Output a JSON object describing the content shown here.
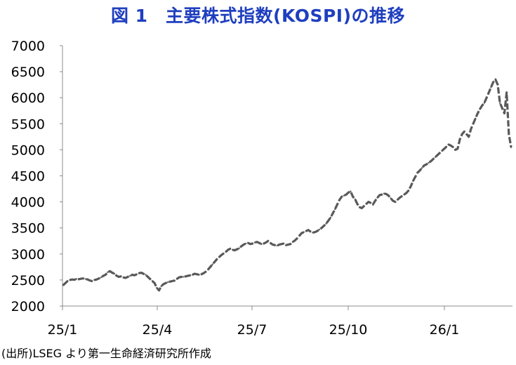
{
  "chart_title": "図 1　主要株式指数(KOSPI)の推移",
  "source": "(出所)LSEG より第一生命経済研究所作成",
  "colors": {
    "title": "#1f3fbf",
    "series": "#595959",
    "axis": "#8c8c8c",
    "text": "#000000"
  },
  "chart_data": {
    "type": "line",
    "title": "図 1　主要株式指数(KOSPI)の推移",
    "xlabel": "",
    "ylabel": "",
    "ylim": [
      2000,
      7000
    ],
    "yticks": [
      2000,
      2500,
      3000,
      3500,
      4000,
      4500,
      5000,
      5500,
      6000,
      6500,
      7000
    ],
    "xticks": [
      "25/1",
      "25/4",
      "25/7",
      "25/10",
      "26/1"
    ],
    "grid": false,
    "legend": "none",
    "series": [
      {
        "values": [
          2400,
          2440,
          2480,
          2500,
          2510,
          2505,
          2520,
          2515,
          2525,
          2530,
          2520,
          2510,
          2490,
          2480,
          2500,
          2510,
          2530,
          2550,
          2580,
          2600,
          2650,
          2670,
          2640,
          2620,
          2580,
          2560,
          2570,
          2550,
          2540,
          2560,
          2580,
          2600,
          2590,
          2610,
          2630,
          2640,
          2620,
          2600,
          2560,
          2520,
          2480,
          2440,
          2350,
          2300,
          2380,
          2420,
          2440,
          2460,
          2470,
          2480,
          2490,
          2520,
          2550,
          2560,
          2560,
          2570,
          2580,
          2590,
          2600,
          2620,
          2610,
          2600,
          2610,
          2630,
          2660,
          2700,
          2750,
          2800,
          2850,
          2900,
          2940,
          2980,
          3010,
          3040,
          3080,
          3100,
          3080,
          3070,
          3090,
          3110,
          3150,
          3180,
          3200,
          3210,
          3190,
          3200,
          3220,
          3230,
          3210,
          3190,
          3200,
          3220,
          3250,
          3210,
          3180,
          3170,
          3160,
          3180,
          3190,
          3200,
          3170,
          3180,
          3190,
          3230,
          3260,
          3300,
          3350,
          3400,
          3420,
          3440,
          3460,
          3430,
          3410,
          3420,
          3440,
          3470,
          3500,
          3540,
          3580,
          3640,
          3700,
          3780,
          3860,
          3950,
          4040,
          4100,
          4120,
          4140,
          4180,
          4200,
          4100,
          4050,
          3960,
          3900,
          3880,
          3920,
          3960,
          4000,
          3980,
          3950,
          4020,
          4080,
          4130,
          4140,
          4160,
          4150,
          4120,
          4070,
          4020,
          4000,
          4040,
          4080,
          4110,
          4140,
          4170,
          4220,
          4300,
          4400,
          4480,
          4560,
          4600,
          4650,
          4700,
          4720,
          4750,
          4780,
          4820,
          4860,
          4900,
          4940,
          4980,
          5020,
          5060,
          5100,
          5080,
          5050,
          5000,
          5020,
          5200,
          5300,
          5350,
          5300,
          5250,
          5400,
          5500,
          5600,
          5700,
          5780,
          5850,
          5900,
          6000,
          6100,
          6200,
          6300,
          6350,
          6250,
          5900,
          5800,
          5700,
          6100,
          5300,
          5050
        ]
      }
    ]
  }
}
